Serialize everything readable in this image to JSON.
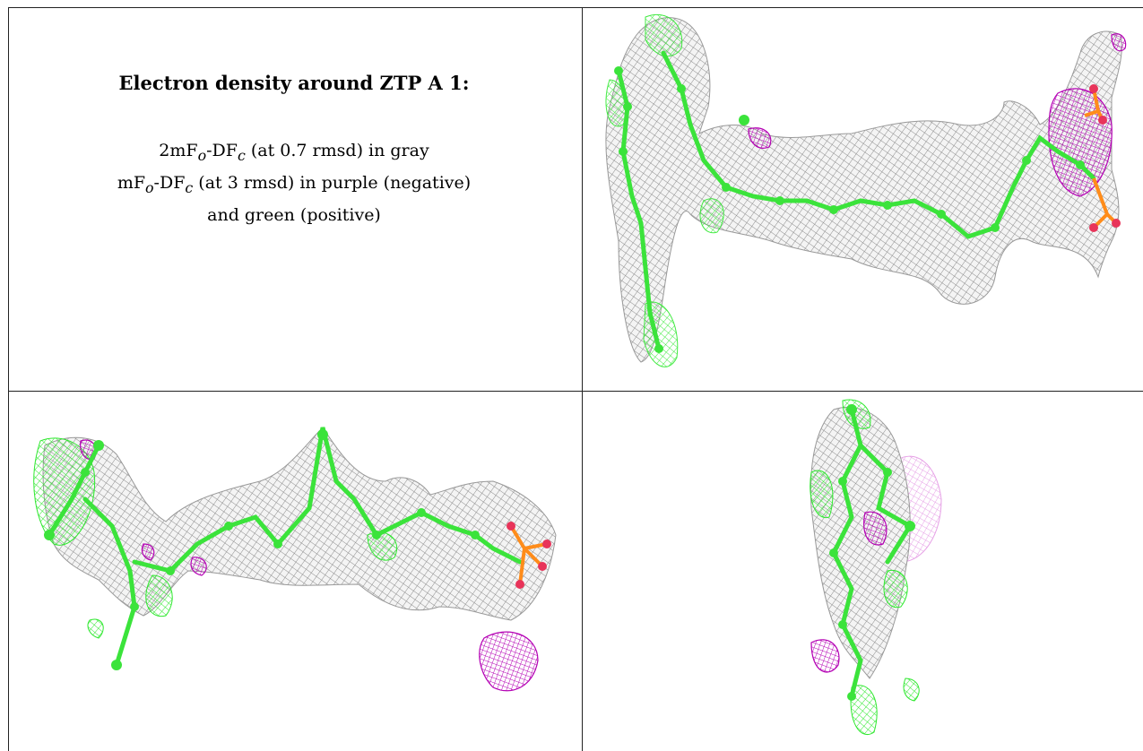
{
  "caption": {
    "title": "Electron density around ZTP A 1:",
    "line1_prefix": "2mF",
    "line1_sub1": "o",
    "line1_mid": "-DF",
    "line1_sub2": "c",
    "line1_suffix": " (at 0.7 rmsd) in gray",
    "line2_prefix": "mF",
    "line2_sub1": "o",
    "line2_mid": "-DF",
    "line2_sub2": "c",
    "line2_suffix": " (at 3 rmsd) in purple (negative)",
    "line3": "and green (positive)"
  },
  "colors": {
    "mesh_gray": "#8c8c8c",
    "negative_purple": "#b400b4",
    "positive_green": "#2ee82e",
    "atom_green": "#3be33b",
    "phosphate_orange": "#ff8c1a",
    "oxygen_red": "#e8345a"
  },
  "panels": [
    {
      "name": "view-top-right"
    },
    {
      "name": "view-bottom-left"
    },
    {
      "name": "view-bottom-right"
    }
  ]
}
